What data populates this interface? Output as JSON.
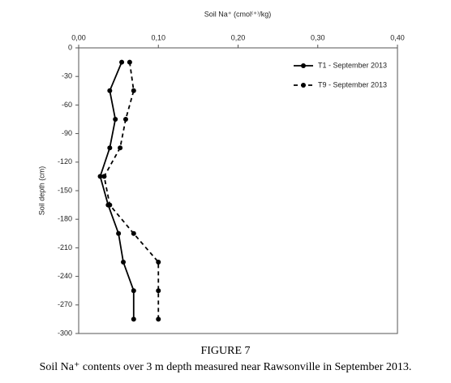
{
  "chart_data": {
    "type": "line",
    "title": "Soil Na⁺ (cmol⁽⁺⁾/kg)",
    "y_label": "Soil depth (cm)",
    "figure_label": "FIGURE 7",
    "caption": "Soil Na⁺ contents over 3 m depth measured near Rawsonville in September 2013.",
    "y": [
      -15,
      -45,
      -75,
      -105,
      -135,
      -165,
      -195,
      -225,
      -255,
      -285
    ],
    "series": [
      {
        "name": "T1 - September 2013",
        "color": "#000000",
        "line_style": "solid",
        "values": [
          0.054,
          0.039,
          0.046,
          0.039,
          0.027,
          0.037,
          0.05,
          0.056,
          0.069,
          0.069
        ]
      },
      {
        "name": "T9 - September 2013",
        "color": "#000000",
        "line_style": "dashed",
        "values": [
          0.064,
          0.069,
          0.059,
          0.052,
          0.032,
          0.039,
          0.069,
          0.1,
          0.1,
          0.1
        ]
      }
    ],
    "xlim": [
      0,
      0.4
    ],
    "xticks": [
      {
        "value": 0,
        "label": "0,00"
      },
      {
        "value": 0.1,
        "label": "0,10"
      },
      {
        "value": 0.2,
        "label": "0,20"
      },
      {
        "value": 0.3,
        "label": "0,30"
      },
      {
        "value": 0.4,
        "label": "0,40"
      }
    ],
    "ylim": [
      0,
      -300
    ],
    "yticks": [
      0,
      -30,
      -60,
      -90,
      -120,
      -150,
      -180,
      -210,
      -240,
      -270,
      -300
    ],
    "legend": "upper right"
  }
}
